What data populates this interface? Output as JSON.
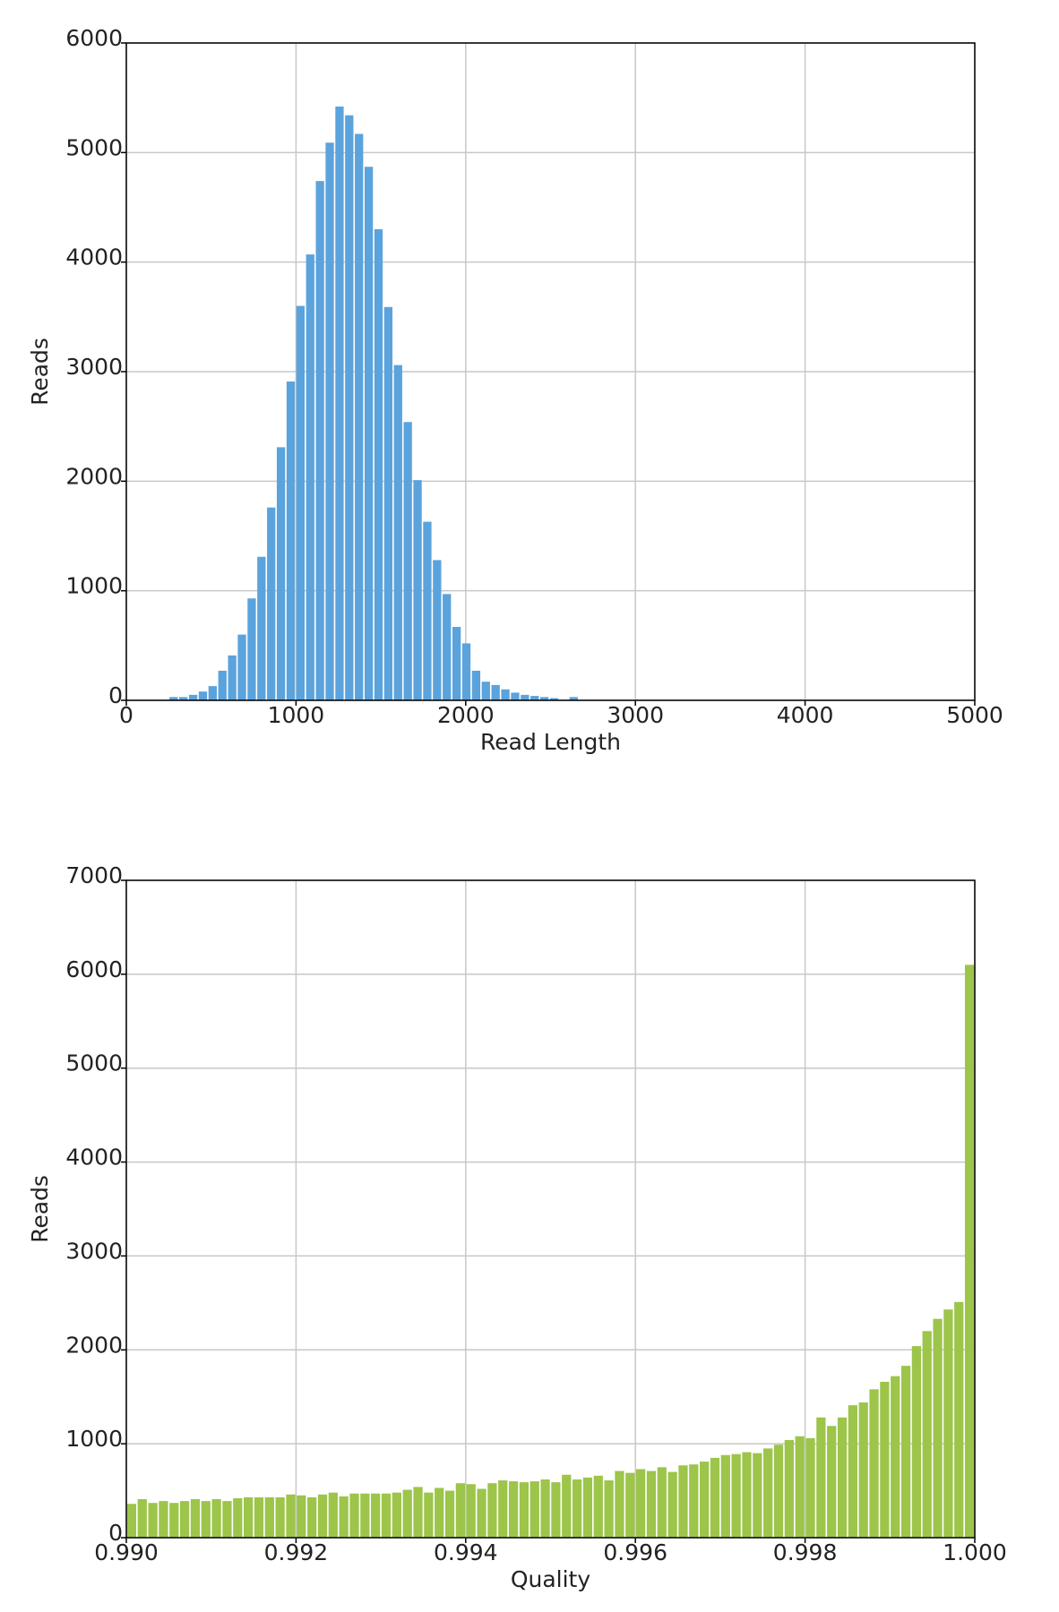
{
  "chart_data": [
    {
      "type": "histogram",
      "xlabel": "Read Length",
      "ylabel": "Reads",
      "color": "#5ba3dc",
      "grid": true,
      "bins": [
        250,
        307.5,
        365,
        422.5,
        480,
        537.5,
        595,
        652.5,
        710,
        767.5,
        825,
        882.5,
        940,
        997.5,
        1055,
        1112.5,
        1170,
        1227.5,
        1285,
        1342.5,
        1400,
        1457.5,
        1515,
        1572.5,
        1630,
        1687.5,
        1745,
        1802.5,
        1860,
        1917.5,
        1975,
        2032.5,
        2090,
        2147.5,
        2205,
        2262.5,
        2320,
        2377.5,
        2435,
        2492.5,
        2550,
        2607.5,
        2665
      ],
      "values": [
        30,
        30,
        50,
        80,
        130,
        270,
        410,
        600,
        930,
        1310,
        1760,
        2310,
        2910,
        3600,
        4070,
        4740,
        5090,
        5420,
        5340,
        5170,
        4870,
        4300,
        3590,
        3060,
        2540,
        2010,
        1630,
        1280,
        970,
        670,
        520,
        270,
        170,
        140,
        100,
        70,
        50,
        40,
        30,
        20,
        0,
        30
      ],
      "xlim": [
        0,
        5000
      ],
      "xticks": [
        0,
        1000,
        2000,
        3000,
        4000,
        5000
      ],
      "ylim": [
        0,
        6000
      ],
      "yticks": [
        0,
        1000,
        2000,
        3000,
        4000,
        5000,
        6000
      ]
    },
    {
      "type": "histogram",
      "xlabel": "Quality",
      "ylabel": "Reads",
      "color": "#9cc54a",
      "grid": true,
      "bins": [
        0.99,
        0.990125,
        0.99025,
        0.990375,
        0.9905,
        0.990625,
        0.99075,
        0.990875,
        0.991,
        0.991125,
        0.99125,
        0.991375,
        0.9915,
        0.991625,
        0.99175,
        0.991875,
        0.992,
        0.992125,
        0.99225,
        0.992375,
        0.9925,
        0.992625,
        0.99275,
        0.992875,
        0.993,
        0.993125,
        0.99325,
        0.993375,
        0.9935,
        0.993625,
        0.99375,
        0.993875,
        0.994,
        0.994125,
        0.99425,
        0.994375,
        0.9945,
        0.994625,
        0.99475,
        0.994875,
        0.995,
        0.995125,
        0.99525,
        0.995375,
        0.9955,
        0.995625,
        0.99575,
        0.995875,
        0.996,
        0.996125,
        0.99625,
        0.996375,
        0.9965,
        0.996625,
        0.99675,
        0.996875,
        0.997,
        0.997125,
        0.99725,
        0.997375,
        0.9975,
        0.997625,
        0.99775,
        0.997875,
        0.998,
        0.998125,
        0.99825,
        0.998375,
        0.9985,
        0.998625,
        0.99875,
        0.998875,
        0.999,
        0.999125,
        0.99925,
        0.999375,
        0.9995,
        0.999625,
        0.99975,
        0.999875,
        1.0
      ],
      "values": [
        360,
        410,
        370,
        390,
        370,
        390,
        410,
        390,
        410,
        390,
        420,
        430,
        430,
        430,
        430,
        460,
        450,
        430,
        460,
        480,
        440,
        470,
        470,
        470,
        470,
        480,
        510,
        540,
        480,
        530,
        500,
        580,
        570,
        520,
        580,
        610,
        600,
        590,
        600,
        620,
        590,
        670,
        620,
        640,
        660,
        610,
        710,
        690,
        730,
        710,
        750,
        700,
        770,
        780,
        810,
        850,
        880,
        890,
        910,
        900,
        950,
        990,
        1040,
        1080,
        1060,
        1280,
        1190,
        1280,
        1410,
        1440,
        1580,
        1660,
        1720,
        1830,
        2040,
        2200,
        2330,
        2430,
        2510,
        6100
      ],
      "xlim": [
        0.99,
        1.0
      ],
      "xticks": [
        {
          "value": 0.99,
          "label": "0.990"
        },
        0.992,
        0.994,
        0.996,
        0.998,
        {
          "value": 1.0,
          "label": "1.000"
        }
      ],
      "ylim": [
        0,
        7000
      ],
      "yticks": [
        0,
        1000,
        2000,
        3000,
        4000,
        5000,
        6000,
        7000
      ]
    }
  ]
}
